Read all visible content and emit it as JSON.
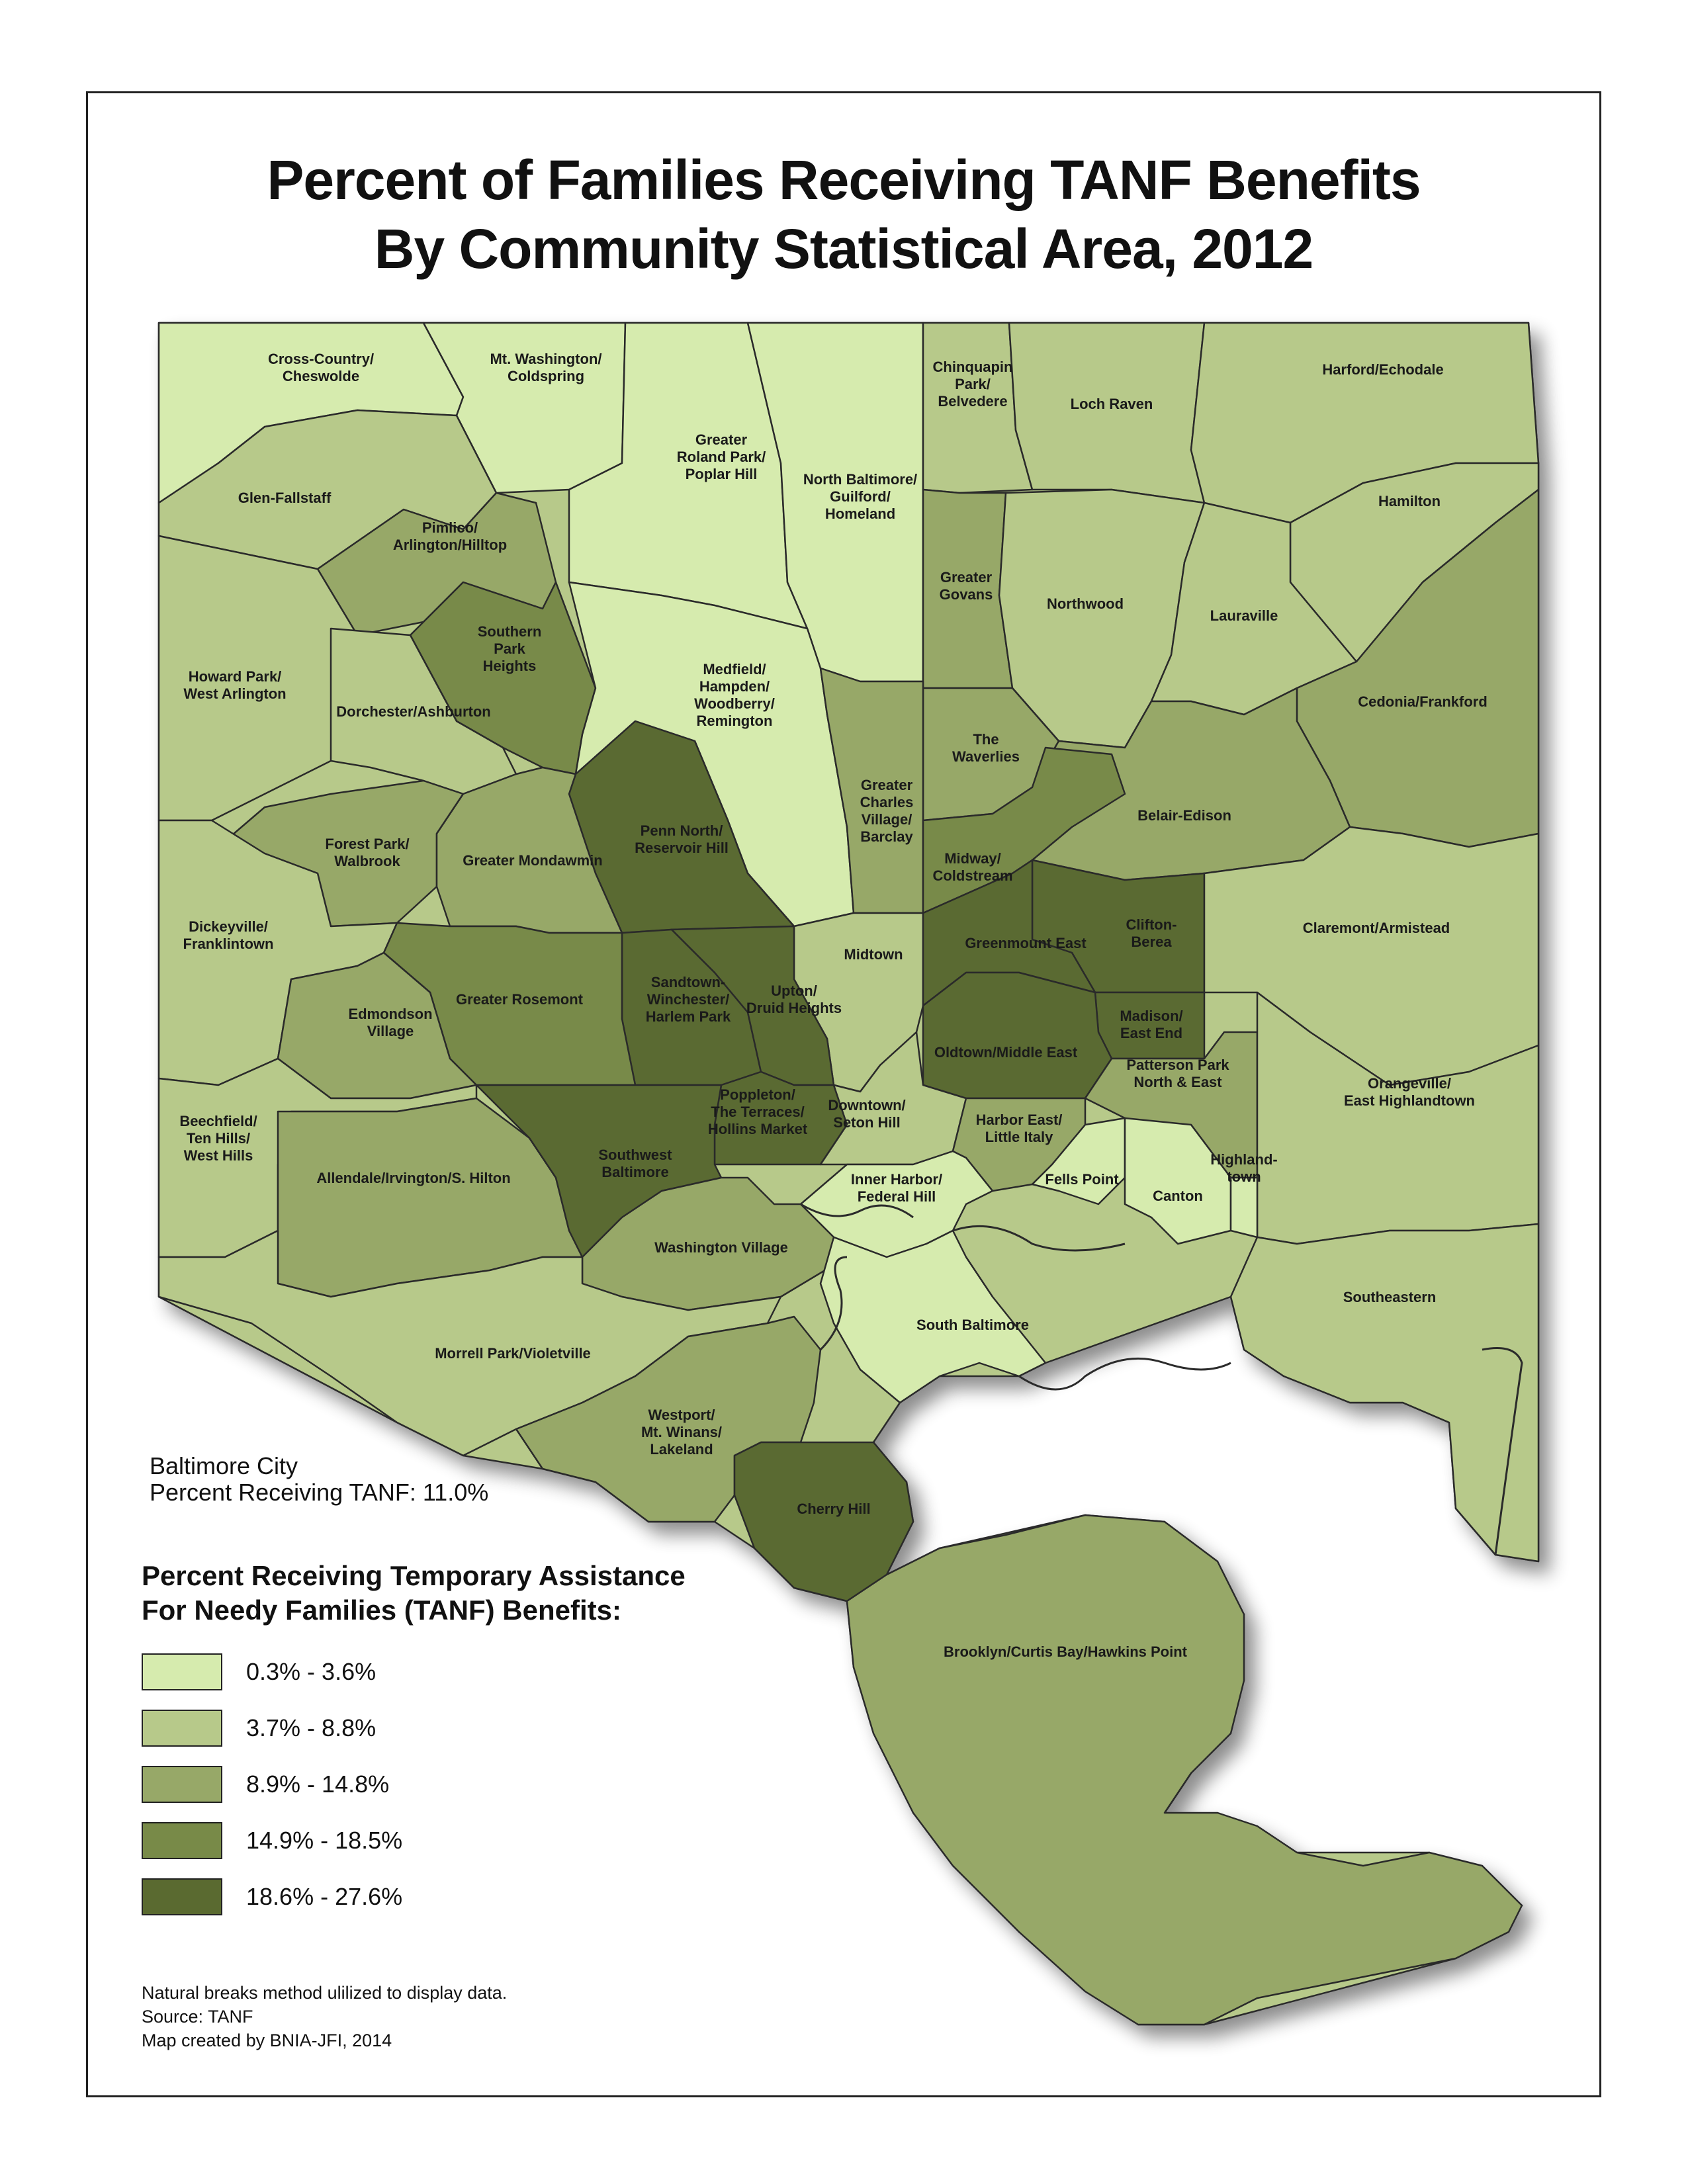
{
  "title": {
    "line1": "Percent of Families Receiving TANF Benefits",
    "line2": "By Community Statistical Area, 2012"
  },
  "city_summary": {
    "line1": "Baltimore City",
    "line2": "Percent Receiving TANF: 11.0%"
  },
  "legend": {
    "title_line1": "Percent Receiving Temporary Assistance",
    "title_line2": "For Needy Families (TANF) Benefits:",
    "classes": [
      {
        "label": "0.3% - 3.6%",
        "color": "#d6ebae"
      },
      {
        "label": "3.7% - 8.8%",
        "color": "#b7c98a"
      },
      {
        "label": "8.9% - 14.8%",
        "color": "#97a868"
      },
      {
        "label": "14.9% - 18.5%",
        "color": "#788a48"
      },
      {
        "label": "18.6% - 27.6%",
        "color": "#5a6a30"
      }
    ]
  },
  "notes": {
    "line1": "Natural breaks method ulilized to display data.",
    "line2": "Source: TANF",
    "line3": "Map created by BNIA-JFI, 2014"
  },
  "areas": [
    {
      "id": "cross-country-cheswolde",
      "name": [
        "Cross-Country/",
        "Cheswolde"
      ],
      "class": 0
    },
    {
      "id": "mt-washington-coldspring",
      "name": [
        "Mt. Washington/",
        "Coldspring"
      ],
      "class": 0
    },
    {
      "id": "greater-roland-park-poplar-hill",
      "name": [
        "Greater",
        "Roland Park/",
        "Poplar Hill"
      ],
      "class": 0
    },
    {
      "id": "north-baltimore-guilford-homeland",
      "name": [
        "North Baltimore/",
        "Guilford/",
        "Homeland"
      ],
      "class": 0
    },
    {
      "id": "chinquapin-park-belvedere",
      "name": [
        "Chinquapin",
        "Park/",
        "Belvedere"
      ],
      "class": 1
    },
    {
      "id": "loch-raven",
      "name": [
        "Loch Raven"
      ],
      "class": 1
    },
    {
      "id": "harford-echodale",
      "name": [
        "Harford/Echodale"
      ],
      "class": 1
    },
    {
      "id": "glen-fallstaff",
      "name": [
        "Glen-Fallstaff"
      ],
      "class": 1
    },
    {
      "id": "pimlico-arlington-hilltop",
      "name": [
        "Pimlico/",
        "Arlington/Hilltop"
      ],
      "class": 2
    },
    {
      "id": "hamilton",
      "name": [
        "Hamilton"
      ],
      "class": 1
    },
    {
      "id": "greater-govans",
      "name": [
        "Greater",
        "Govans"
      ],
      "class": 2
    },
    {
      "id": "northwood",
      "name": [
        "Northwood"
      ],
      "class": 1
    },
    {
      "id": "lauraville",
      "name": [
        "Lauraville"
      ],
      "class": 1
    },
    {
      "id": "southern-park-heights",
      "name": [
        "Southern",
        "Park",
        "Heights"
      ],
      "class": 3
    },
    {
      "id": "howard-park-west-arlington",
      "name": [
        "Howard Park/",
        "West Arlington"
      ],
      "class": 1
    },
    {
      "id": "dorchester-ashburton",
      "name": [
        "Dorchester/Ashburton"
      ],
      "class": 1
    },
    {
      "id": "medfield-hampden-woodberry-remington",
      "name": [
        "Medfield/",
        "Hampden/",
        "Woodberry/",
        "Remington"
      ],
      "class": 0
    },
    {
      "id": "cedonia-frankford",
      "name": [
        "Cedonia/Frankford"
      ],
      "class": 2
    },
    {
      "id": "the-waverlies",
      "name": [
        "The",
        "Waverlies"
      ],
      "class": 2
    },
    {
      "id": "greater-charles-village-barclay",
      "name": [
        "Greater",
        "Charles",
        "Village/",
        "Barclay"
      ],
      "class": 2
    },
    {
      "id": "penn-north-reservoir-hill",
      "name": [
        "Penn North/",
        "Reservoir Hill"
      ],
      "class": 4
    },
    {
      "id": "belair-edison",
      "name": [
        "Belair-Edison"
      ],
      "class": 2
    },
    {
      "id": "forest-park-walbrook",
      "name": [
        "Forest Park/",
        "Walbrook"
      ],
      "class": 2
    },
    {
      "id": "greater-mondawmin",
      "name": [
        "Greater Mondawmin"
      ],
      "class": 2
    },
    {
      "id": "midway-coldstream",
      "name": [
        "Midway/",
        "Coldstream"
      ],
      "class": 3
    },
    {
      "id": "dickeyville-franklintown",
      "name": [
        "Dickeyville/",
        "Franklintown"
      ],
      "class": 1
    },
    {
      "id": "clifton-berea",
      "name": [
        "Clifton-",
        "Berea"
      ],
      "class": 4
    },
    {
      "id": "claremont-armistead",
      "name": [
        "Claremont/Armistead"
      ],
      "class": 1
    },
    {
      "id": "midtown",
      "name": [
        "Midtown"
      ],
      "class": 1
    },
    {
      "id": "greenmount-east",
      "name": [
        "Greenmount East"
      ],
      "class": 4
    },
    {
      "id": "sandtown-winchester-harlem-park",
      "name": [
        "Sandtown-",
        "Winchester/",
        "Harlem Park"
      ],
      "class": 4
    },
    {
      "id": "upton-druid-heights",
      "name": [
        "Upton/",
        "Druid Heights"
      ],
      "class": 4
    },
    {
      "id": "greater-rosemont",
      "name": [
        "Greater Rosemont"
      ],
      "class": 3
    },
    {
      "id": "edmondson-village",
      "name": [
        "Edmondson",
        "Village"
      ],
      "class": 2
    },
    {
      "id": "madison-east-end",
      "name": [
        "Madison/",
        "East End"
      ],
      "class": 4
    },
    {
      "id": "oldtown-middle-east",
      "name": [
        "Oldtown/Middle East"
      ],
      "class": 4
    },
    {
      "id": "patterson-park-north-east",
      "name": [
        "Patterson Park",
        "North & East"
      ],
      "class": 2
    },
    {
      "id": "orangeville-east-highlandtown",
      "name": [
        "Orangeville/",
        "East Highlandtown"
      ],
      "class": 1
    },
    {
      "id": "poppleton-terraces-hollins-market",
      "name": [
        "Poppleton/",
        "The Terraces/",
        "Hollins Market"
      ],
      "class": 4
    },
    {
      "id": "downtown-seton-hill",
      "name": [
        "Downtown/",
        "Seton Hill"
      ],
      "class": 1
    },
    {
      "id": "harbor-east-little-italy",
      "name": [
        "Harbor East/",
        "Little Italy"
      ],
      "class": 2
    },
    {
      "id": "beechfield-ten-hills-west-hills",
      "name": [
        "Beechfield/",
        "Ten Hills/",
        "West Hills"
      ],
      "class": 1
    },
    {
      "id": "allendale-irvington-s-hilton",
      "name": [
        "Allendale/Irvington/S. Hilton"
      ],
      "class": 2
    },
    {
      "id": "southwest-baltimore",
      "name": [
        "Southwest",
        "Baltimore"
      ],
      "class": 4
    },
    {
      "id": "fells-point",
      "name": [
        "Fells Point"
      ],
      "class": 0
    },
    {
      "id": "canton",
      "name": [
        "Canton"
      ],
      "class": 0
    },
    {
      "id": "highlandtown",
      "name": [
        "Highland-",
        "town"
      ],
      "class": 0
    },
    {
      "id": "inner-harbor-federal-hill",
      "name": [
        "Inner Harbor/",
        "Federal Hill"
      ],
      "class": 0
    },
    {
      "id": "washington-village",
      "name": [
        "Washington Village"
      ],
      "class": 2
    },
    {
      "id": "southeastern",
      "name": [
        "Southeastern"
      ],
      "class": 1
    },
    {
      "id": "south-baltimore",
      "name": [
        "South Baltimore"
      ],
      "class": 0
    },
    {
      "id": "morrell-park-violetville",
      "name": [
        "Morrell Park/Violetville"
      ],
      "class": 1
    },
    {
      "id": "westport-mt-winans-lakeland",
      "name": [
        "Westport/",
        "Mt. Winans/",
        "Lakeland"
      ],
      "class": 2
    },
    {
      "id": "cherry-hill",
      "name": [
        "Cherry Hill"
      ],
      "class": 4
    },
    {
      "id": "brooklyn-curtis-bay-hawkins-point",
      "name": [
        "Brooklyn/Curtis Bay/Hawkins Point"
      ],
      "class": 2
    }
  ]
}
